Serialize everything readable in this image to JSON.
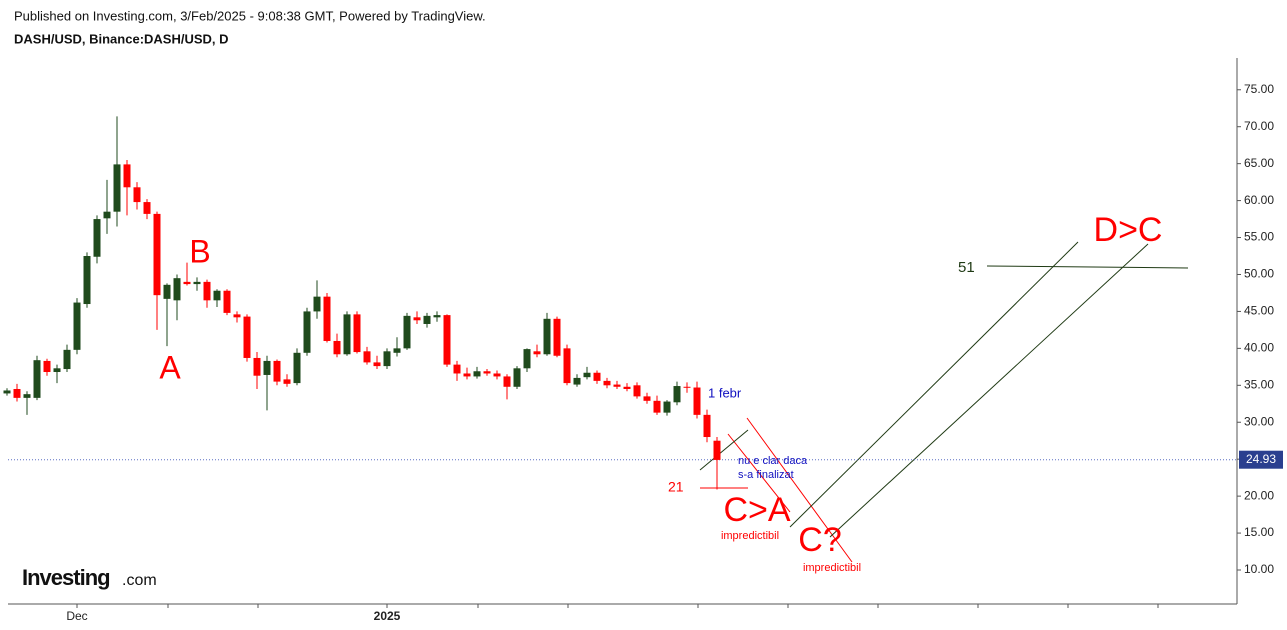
{
  "header": {
    "published": "Published on Investing.com, 3/Feb/2025 - 9:08:38 GMT, Powered by TradingView.",
    "symbol": "DASH/USD, Binance:DASH/USD, D"
  },
  "logo": {
    "brand": "Investing",
    "suffix": ".com"
  },
  "chart_data": {
    "type": "candlestick",
    "categories": [
      null,
      null,
      null,
      null,
      null,
      null,
      null,
      "Dec",
      null,
      null,
      null,
      null,
      null,
      null,
      null,
      null,
      null,
      null,
      null,
      null,
      null,
      null,
      null,
      null,
      null,
      null,
      null,
      null,
      null,
      null,
      null,
      null,
      null,
      null,
      null,
      null,
      null,
      null,
      "2025",
      null,
      null,
      null,
      null,
      null,
      null,
      null,
      null,
      null,
      null,
      null,
      null,
      null,
      null,
      null,
      null,
      null,
      null,
      null,
      null,
      null,
      null,
      null,
      null,
      null,
      null,
      null,
      null,
      null,
      null,
      null,
      null,
      null
    ],
    "open": [
      33.9,
      34.5,
      33.3,
      33.3,
      38.3,
      36.8,
      37.2,
      39.8,
      46.0,
      52.4,
      57.6,
      58.5,
      64.9,
      61.8,
      59.8,
      58.2,
      46.7,
      46.5,
      49.0,
      48.7,
      49.0,
      46.5,
      47.8,
      44.6,
      44.3,
      38.7,
      36.4,
      38.3,
      35.8,
      35.3,
      39.4,
      45.0,
      47.0,
      41.0,
      39.2,
      44.6,
      39.6,
      38.1,
      37.6,
      39.4,
      40.0,
      44.2,
      43.3,
      44.2,
      44.5,
      37.8,
      36.6,
      36.2,
      36.9,
      36.6,
      36.2,
      34.8,
      37.3,
      39.6,
      39.2,
      44.0,
      40.0,
      35.1,
      36.1,
      36.7,
      35.6,
      35.1,
      34.8,
      35.0,
      33.5,
      32.9,
      31.3,
      32.7,
      34.8,
      34.7,
      31.0,
      27.5
    ],
    "high": [
      34.6,
      35.2,
      34.2,
      39.0,
      38.6,
      37.8,
      40.5,
      46.8,
      53.0,
      58.0,
      62.8,
      71.4,
      65.5,
      62.5,
      60.2,
      58.5,
      48.8,
      50.0,
      51.6,
      49.6,
      49.3,
      48.0,
      48.0,
      45.0,
      44.6,
      39.5,
      39.0,
      38.5,
      36.5,
      40.0,
      45.5,
      49.2,
      47.5,
      42.0,
      45.0,
      45.0,
      40.2,
      39.0,
      40.0,
      41.5,
      44.8,
      45.0,
      44.8,
      45.0,
      44.6,
      38.3,
      37.4,
      37.5,
      37.2,
      37.0,
      36.5,
      37.6,
      40.0,
      40.5,
      44.8,
      44.3,
      40.5,
      36.5,
      37.5,
      37.0,
      36.0,
      35.6,
      35.3,
      35.4,
      34.0,
      33.6,
      33.0,
      35.5,
      35.4,
      35.5,
      31.7,
      28.0
    ],
    "low": [
      33.6,
      32.8,
      31.0,
      33.0,
      36.3,
      35.3,
      36.8,
      39.2,
      45.5,
      51.5,
      55.5,
      56.5,
      58.0,
      58.8,
      57.5,
      42.5,
      40.3,
      43.8,
      48.5,
      47.8,
      45.5,
      45.6,
      44.5,
      43.5,
      38.2,
      34.5,
      31.6,
      35.0,
      34.8,
      35.0,
      39.0,
      44.0,
      40.8,
      38.8,
      39.0,
      39.3,
      37.8,
      37.2,
      37.2,
      38.9,
      39.8,
      43.3,
      42.8,
      43.6,
      37.5,
      35.6,
      35.8,
      35.9,
      36.3,
      35.8,
      33.1,
      34.5,
      36.8,
      38.8,
      39.0,
      38.8,
      35.0,
      34.8,
      35.8,
      35.2,
      34.6,
      34.5,
      34.2,
      33.2,
      32.5,
      31.0,
      30.9,
      32.3,
      34.0,
      30.5,
      27.3,
      20.9
    ],
    "close": [
      34.3,
      33.3,
      33.8,
      38.4,
      36.8,
      37.3,
      39.8,
      46.2,
      52.5,
      57.5,
      58.5,
      64.9,
      61.8,
      59.8,
      58.2,
      47.2,
      48.6,
      49.5,
      48.7,
      49.0,
      46.5,
      47.8,
      44.8,
      44.2,
      38.7,
      36.3,
      38.3,
      35.5,
      35.2,
      39.4,
      45.0,
      47.0,
      41.0,
      39.2,
      44.6,
      39.5,
      38.1,
      37.6,
      39.6,
      40.0,
      44.4,
      43.8,
      44.4,
      44.5,
      37.8,
      36.6,
      36.2,
      36.9,
      36.6,
      36.2,
      34.8,
      37.3,
      39.9,
      39.2,
      44.0,
      39.0,
      35.3,
      36.0,
      36.7,
      35.6,
      35.0,
      34.8,
      34.5,
      33.5,
      32.9,
      31.3,
      32.8,
      34.9,
      34.7,
      31.0,
      28.0,
      24.9
    ],
    "up_color": "#1f4a1c",
    "down_color": "#ff0000",
    "ylim": [
      5.4,
      79.3
    ],
    "yticks": [
      {
        "value": 10,
        "label": "10.00"
      },
      {
        "value": 15,
        "label": "15.00"
      },
      {
        "value": 20,
        "label": "20.00"
      },
      {
        "value": 25,
        "label": "25.00"
      },
      {
        "value": 30,
        "label": "30.00"
      },
      {
        "value": 35,
        "label": "35.00"
      },
      {
        "value": 40,
        "label": "40.00"
      },
      {
        "value": 45,
        "label": "45.00"
      },
      {
        "value": 50,
        "label": "50.00"
      },
      {
        "value": 55,
        "label": "55.00"
      },
      {
        "value": 60,
        "label": "60.00"
      },
      {
        "value": 65,
        "label": "65.00"
      },
      {
        "value": 70,
        "label": "70.00"
      },
      {
        "value": 75,
        "label": "75.00"
      }
    ],
    "last_price": 24.93,
    "last_price_color": "#2a3f8f",
    "annotations": [
      {
        "text": "A",
        "color": "#ff0000"
      },
      {
        "text": "B",
        "color": "#ff0000"
      },
      {
        "text": "C>A",
        "color": "#ff0000"
      },
      {
        "text": "C?",
        "color": "#ff0000"
      },
      {
        "text": "D>C",
        "color": "#ff0000"
      },
      {
        "text": "1 febr",
        "color": "#1010c0"
      },
      {
        "text": "nu e clar daca",
        "color": "#1010c0"
      },
      {
        "text": "s-a finalizat",
        "color": "#1010c0"
      },
      {
        "text": "21",
        "color": "#ff0000"
      },
      {
        "text": "51",
        "color": "#1f3a14"
      },
      {
        "text": "impredictibil",
        "color": "#ff0000"
      },
      {
        "text": "impredictibil",
        "color": "#ff0000"
      }
    ]
  }
}
